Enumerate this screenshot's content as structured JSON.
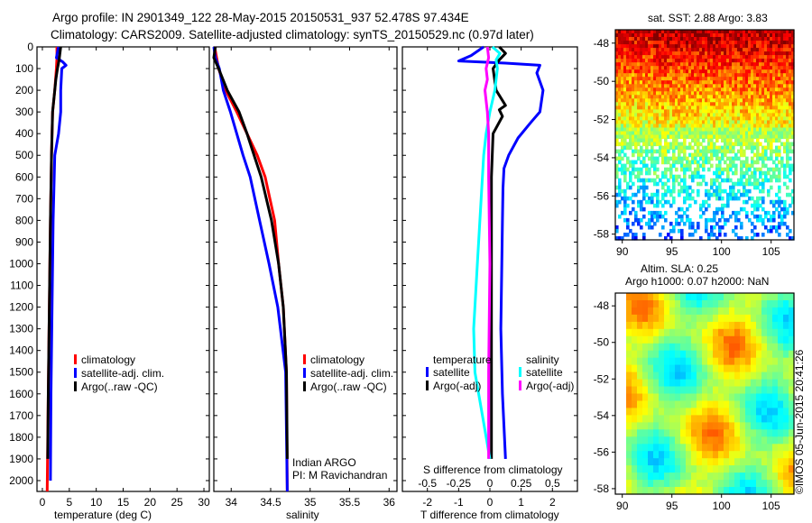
{
  "title_line1": "Argo profile: IN 2901349_122 28-May-2015 20150531_937 52.478S 97.434E",
  "title_line2": "Climatology: CARS2009. Satellite-adjusted climatology: synTS_20150529.nc (0.97d later)",
  "copyright": "©IMOS 05-Jun-2015 20:41:26",
  "chart_data": [
    {
      "type": "line",
      "name": "temperature-profile",
      "xlabel": "temperature (deg C)",
      "xlim": [
        -1,
        31
      ],
      "xticks": [
        "0",
        "5",
        "10",
        "15",
        "20",
        "25",
        "30"
      ],
      "ylim": [
        0,
        2050
      ],
      "yticks": [
        "0",
        "100",
        "200",
        "300",
        "400",
        "500",
        "600",
        "700",
        "800",
        "900",
        "1000",
        "1100",
        "1200",
        "1300",
        "1400",
        "1500",
        "1600",
        "1700",
        "1800",
        "1900",
        "2000"
      ],
      "legend": [
        "climatology",
        "satellite-adj. clim.",
        "Argo(..raw -QC)"
      ],
      "series": [
        {
          "name": "climatology",
          "color": "#ff0000",
          "depth": [
            0,
            50,
            100,
            200,
            300,
            500,
            800,
            1200,
            1600,
            2050
          ],
          "values": [
            2.7,
            2.7,
            2.6,
            2.3,
            1.9,
            1.7,
            1.5,
            1.3,
            1.1,
            0.9
          ]
        },
        {
          "name": "satellite-adj. clim.",
          "color": "#0000ff",
          "depth": [
            0,
            50,
            70,
            85,
            100,
            200,
            300,
            400,
            500,
            800,
            1200,
            1600,
            2000
          ],
          "values": [
            3.0,
            2.6,
            3.8,
            4.4,
            3.6,
            3.4,
            3.4,
            3.0,
            2.3,
            2.0,
            1.8,
            1.6,
            1.5
          ]
        },
        {
          "name": "Argo(..raw -QC)",
          "color": "#000000",
          "depth": [
            0,
            20,
            60,
            100,
            150,
            200,
            300,
            500,
            800,
            1200,
            1600,
            1900
          ],
          "values": [
            3.4,
            3.3,
            3.1,
            2.8,
            2.5,
            2.3,
            1.9,
            1.7,
            1.5,
            1.3,
            1.1,
            1.0
          ]
        }
      ]
    },
    {
      "type": "line",
      "name": "salinity-profile",
      "xlabel": "salinity",
      "xlim": [
        33.78,
        36.1
      ],
      "xticks": [
        "34",
        "34.5",
        "35",
        "35.5",
        "36"
      ],
      "ylim": [
        0,
        2050
      ],
      "legend": [
        "climatology",
        "satellite-adj. clim.",
        "Argo(..raw -QC)"
      ],
      "annotation": [
        "Indian ARGO",
        "PI: M Ravichandran"
      ],
      "series": [
        {
          "name": "climatology",
          "color": "#ff0000",
          "depth": [
            0,
            100,
            200,
            300,
            400,
            500,
            600,
            800,
            1000,
            1200,
            1500,
            2050
          ],
          "values": [
            33.79,
            33.84,
            33.93,
            34.07,
            34.2,
            34.33,
            34.43,
            34.55,
            34.6,
            34.66,
            34.7,
            34.71
          ]
        },
        {
          "name": "satellite-adj. clim.",
          "color": "#0000ff",
          "depth": [
            0,
            50,
            100,
            200,
            300,
            400,
            500,
            600,
            800,
            1000,
            1200,
            1500,
            2050
          ],
          "values": [
            33.78,
            33.8,
            33.85,
            33.9,
            33.99,
            34.07,
            34.15,
            34.24,
            34.36,
            34.48,
            34.59,
            34.69,
            34.71
          ]
        },
        {
          "name": "Argo(..raw -QC)",
          "color": "#000000",
          "depth": [
            0,
            50,
            100,
            200,
            300,
            400,
            500,
            600,
            800,
            1000,
            1200,
            1500,
            1900
          ],
          "values": [
            33.8,
            33.78,
            33.84,
            33.95,
            34.1,
            34.2,
            34.29,
            34.38,
            34.51,
            34.6,
            34.66,
            34.7,
            34.71
          ]
        }
      ]
    },
    {
      "type": "line",
      "name": "difference-profile",
      "xlabel": "T difference from climatology",
      "xlabel2": "S difference from climatology",
      "xlim": [
        -2.8,
        2.8
      ],
      "xticks": [
        "-2",
        "-1",
        "0",
        "1",
        "2"
      ],
      "xticks2": [
        "-0.5",
        "-0.25",
        "0",
        "0.25",
        "0.5"
      ],
      "ylim": [
        0,
        2050
      ],
      "legend_t_title": "temperature",
      "legend_s_title": "salinity",
      "legend": [
        "satellite",
        "Argo(-adj)",
        "satellite",
        "Argo(-adj)"
      ],
      "series": [
        {
          "name": "T satellite",
          "color": "#0000ff",
          "axis": "T",
          "depth": [
            0,
            40,
            65,
            75,
            85,
            120,
            200,
            300,
            350,
            420,
            500,
            560,
            650,
            800,
            1000,
            1300,
            1600,
            1900
          ],
          "values": [
            -0.2,
            -0.6,
            -1.0,
            0.5,
            1.6,
            1.5,
            1.7,
            1.6,
            1.3,
            0.9,
            0.6,
            0.45,
            0.42,
            0.4,
            0.38,
            0.35,
            0.4,
            0.5
          ]
        },
        {
          "name": "T Argo(-adj)",
          "color": "#000000",
          "axis": "T",
          "depth": [
            0,
            30,
            60,
            100,
            200,
            270,
            290,
            320,
            400,
            600,
            1000,
            1500,
            1900
          ],
          "values": [
            0.3,
            0.5,
            0.3,
            0.1,
            0.2,
            0.5,
            0.3,
            0.4,
            0.1,
            0.05,
            0.05,
            0.05,
            0.05
          ]
        },
        {
          "name": "S satellite",
          "color": "#00ffff",
          "axis": "S",
          "depth": [
            0,
            30,
            60,
            100,
            200,
            300,
            400,
            500,
            700,
            1000,
            1300,
            1500,
            1700,
            1900
          ],
          "values": [
            0.02,
            0.08,
            0.05,
            0.06,
            0.04,
            0.0,
            -0.03,
            -0.05,
            -0.07,
            -0.1,
            -0.13,
            -0.12,
            -0.06,
            0.0
          ]
        },
        {
          "name": "S Argo(-adj)",
          "color": "#ff00ff",
          "axis": "S",
          "depth": [
            0,
            50,
            100,
            150,
            200,
            300,
            400,
            600,
            1000,
            1500,
            1900
          ],
          "values": [
            -0.02,
            -0.01,
            -0.03,
            -0.02,
            -0.04,
            -0.02,
            -0.01,
            -0.01,
            0.0,
            -0.01,
            -0.01
          ]
        }
      ]
    },
    {
      "type": "heatmap",
      "name": "sst-map",
      "title": "sat. SST: 2.88 Argo: 3.83",
      "xticks": [
        "90",
        "95",
        "100",
        "105"
      ],
      "yticks": [
        "-48",
        "-50",
        "-52",
        "-54",
        "-56",
        "-58"
      ],
      "xlim": [
        89.3,
        107.3
      ],
      "ylim": [
        -58.3,
        -47.3
      ]
    },
    {
      "type": "heatmap",
      "name": "sla-map",
      "title": "Altim. SLA: 0.25",
      "subtitle": "Argo h1000: 0.07 h2000: NaN",
      "xticks": [
        "90",
        "95",
        "100",
        "105"
      ],
      "yticks": [
        "-48",
        "-50",
        "-52",
        "-54",
        "-56",
        "-58"
      ],
      "xlim": [
        89.3,
        107.3
      ],
      "ylim": [
        -58.3,
        -47.3
      ]
    }
  ]
}
